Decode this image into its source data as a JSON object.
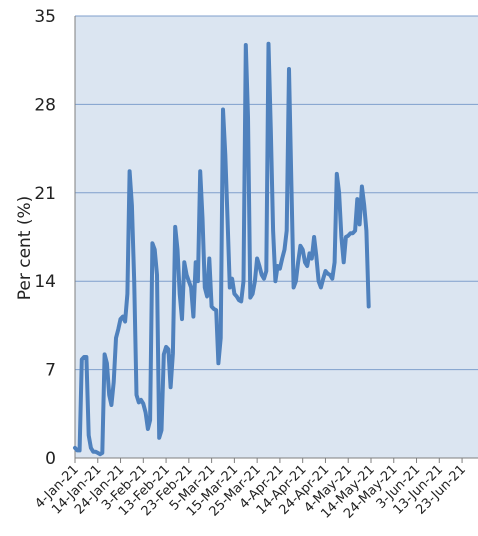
{
  "chart_data": {
    "type": "line",
    "title": "",
    "xlabel": "",
    "ylabel": "Per cent (%)",
    "ylim": [
      0,
      35
    ],
    "yticks": [
      "0",
      "7",
      "14",
      "21",
      "28",
      "35"
    ],
    "grid": "horizontal",
    "legend": "none",
    "x_tick_labels": [
      "4-Jan-21",
      "14-Jan-21",
      "24-Jan-21",
      "3-Feb-21",
      "13-Feb-21",
      "23-Feb-21",
      "5-Mar-21",
      "15-Mar-21",
      "25-Mar-21",
      "4-Apr-21",
      "14-Apr-21",
      "24-Apr-21",
      "4-May-21",
      "14-May-21",
      "24-May-21",
      "3-Jun-21",
      "13-Jun-21",
      "23-Jun-21"
    ],
    "x_start": "2021-01-04",
    "x_end": "2021-06-30",
    "series": [
      {
        "color": "#4f81bd",
        "points": [
          [
            "2021-01-04",
            0.8
          ],
          [
            "2021-01-05",
            0.6
          ],
          [
            "2021-01-06",
            0.6
          ],
          [
            "2021-01-07",
            7.8
          ],
          [
            "2021-01-08",
            8.0
          ],
          [
            "2021-01-09",
            8.0
          ],
          [
            "2021-01-10",
            1.8
          ],
          [
            "2021-01-11",
            0.8
          ],
          [
            "2021-01-12",
            0.5
          ],
          [
            "2021-01-13",
            0.5
          ],
          [
            "2021-01-14",
            0.4
          ],
          [
            "2021-01-15",
            0.3
          ],
          [
            "2021-01-16",
            0.4
          ],
          [
            "2021-01-17",
            8.2
          ],
          [
            "2021-01-18",
            7.5
          ],
          [
            "2021-01-19",
            5.0
          ],
          [
            "2021-01-20",
            4.2
          ],
          [
            "2021-01-21",
            6.0
          ],
          [
            "2021-01-22",
            9.5
          ],
          [
            "2021-01-23",
            10.2
          ],
          [
            "2021-01-24",
            11.0
          ],
          [
            "2021-01-25",
            11.2
          ],
          [
            "2021-01-26",
            10.8
          ],
          [
            "2021-01-27",
            13.0
          ],
          [
            "2021-01-28",
            22.7
          ],
          [
            "2021-01-29",
            20.0
          ],
          [
            "2021-01-30",
            14.0
          ],
          [
            "2021-01-31",
            5.0
          ],
          [
            "2021-02-01",
            4.4
          ],
          [
            "2021-02-02",
            4.6
          ],
          [
            "2021-02-03",
            4.3
          ],
          [
            "2021-02-04",
            3.6
          ],
          [
            "2021-02-05",
            2.3
          ],
          [
            "2021-02-06",
            3.0
          ],
          [
            "2021-02-07",
            17.0
          ],
          [
            "2021-02-08",
            16.5
          ],
          [
            "2021-02-09",
            14.5
          ],
          [
            "2021-02-10",
            1.6
          ],
          [
            "2021-02-11",
            2.2
          ],
          [
            "2021-02-12",
            8.2
          ],
          [
            "2021-02-13",
            8.8
          ],
          [
            "2021-02-14",
            8.6
          ],
          [
            "2021-02-15",
            5.6
          ],
          [
            "2021-02-16",
            8.3
          ],
          [
            "2021-02-17",
            18.3
          ],
          [
            "2021-02-18",
            16.5
          ],
          [
            "2021-02-19",
            13.0
          ],
          [
            "2021-02-20",
            11.0
          ],
          [
            "2021-02-21",
            15.5
          ],
          [
            "2021-02-22",
            14.5
          ],
          [
            "2021-02-23",
            14.0
          ],
          [
            "2021-02-24",
            13.5
          ],
          [
            "2021-02-25",
            11.2
          ],
          [
            "2021-02-26",
            15.5
          ],
          [
            "2021-02-27",
            14.0
          ],
          [
            "2021-02-28",
            22.7
          ],
          [
            "2021-03-01",
            19.0
          ],
          [
            "2021-03-02",
            13.5
          ],
          [
            "2021-03-03",
            12.8
          ],
          [
            "2021-03-04",
            15.8
          ],
          [
            "2021-03-05",
            12.0
          ],
          [
            "2021-03-06",
            11.8
          ],
          [
            "2021-03-07",
            11.7
          ],
          [
            "2021-03-08",
            7.5
          ],
          [
            "2021-03-09",
            9.5
          ],
          [
            "2021-03-10",
            27.6
          ],
          [
            "2021-03-11",
            24.0
          ],
          [
            "2021-03-12",
            19.0
          ],
          [
            "2021-03-13",
            13.5
          ],
          [
            "2021-03-14",
            14.2
          ],
          [
            "2021-03-15",
            13.0
          ],
          [
            "2021-03-16",
            12.8
          ],
          [
            "2021-03-17",
            12.5
          ],
          [
            "2021-03-18",
            12.4
          ],
          [
            "2021-03-19",
            14.0
          ],
          [
            "2021-03-20",
            32.7
          ],
          [
            "2021-03-21",
            27.0
          ],
          [
            "2021-03-22",
            12.7
          ],
          [
            "2021-03-23",
            13.0
          ],
          [
            "2021-03-24",
            14.0
          ],
          [
            "2021-03-25",
            15.8
          ],
          [
            "2021-03-26",
            15.2
          ],
          [
            "2021-03-27",
            14.5
          ],
          [
            "2021-03-28",
            14.2
          ],
          [
            "2021-03-29",
            14.8
          ],
          [
            "2021-03-30",
            32.8
          ],
          [
            "2021-03-31",
            26.0
          ],
          [
            "2021-04-01",
            18.0
          ],
          [
            "2021-04-02",
            14.0
          ],
          [
            "2021-04-03",
            15.2
          ],
          [
            "2021-04-04",
            15.0
          ],
          [
            "2021-04-05",
            15.8
          ],
          [
            "2021-04-06",
            16.5
          ],
          [
            "2021-04-07",
            18.0
          ],
          [
            "2021-04-08",
            30.8
          ],
          [
            "2021-04-09",
            22.0
          ],
          [
            "2021-04-10",
            13.5
          ],
          [
            "2021-04-11",
            14.0
          ],
          [
            "2021-04-12",
            15.5
          ],
          [
            "2021-04-13",
            16.8
          ],
          [
            "2021-04-14",
            16.5
          ],
          [
            "2021-04-15",
            15.5
          ],
          [
            "2021-04-16",
            15.2
          ],
          [
            "2021-04-17",
            16.2
          ],
          [
            "2021-04-18",
            15.8
          ],
          [
            "2021-04-19",
            17.5
          ],
          [
            "2021-04-20",
            16.0
          ],
          [
            "2021-04-21",
            14.0
          ],
          [
            "2021-04-22",
            13.5
          ],
          [
            "2021-04-23",
            14.2
          ],
          [
            "2021-04-24",
            14.8
          ],
          [
            "2021-04-25",
            14.6
          ],
          [
            "2021-04-26",
            14.5
          ],
          [
            "2021-04-27",
            14.2
          ],
          [
            "2021-04-28",
            15.5
          ],
          [
            "2021-04-29",
            22.5
          ],
          [
            "2021-04-30",
            21.0
          ],
          [
            "2021-05-01",
            17.5
          ],
          [
            "2021-05-02",
            15.5
          ],
          [
            "2021-05-03",
            17.5
          ],
          [
            "2021-05-04",
            17.6
          ],
          [
            "2021-05-05",
            17.8
          ],
          [
            "2021-05-06",
            17.8
          ],
          [
            "2021-05-07",
            18.0
          ],
          [
            "2021-05-08",
            20.5
          ],
          [
            "2021-05-09",
            18.5
          ],
          [
            "2021-05-10",
            21.5
          ],
          [
            "2021-05-11",
            20.0
          ],
          [
            "2021-05-12",
            18.0
          ],
          [
            "2021-05-13",
            12.0
          ]
        ]
      }
    ]
  }
}
